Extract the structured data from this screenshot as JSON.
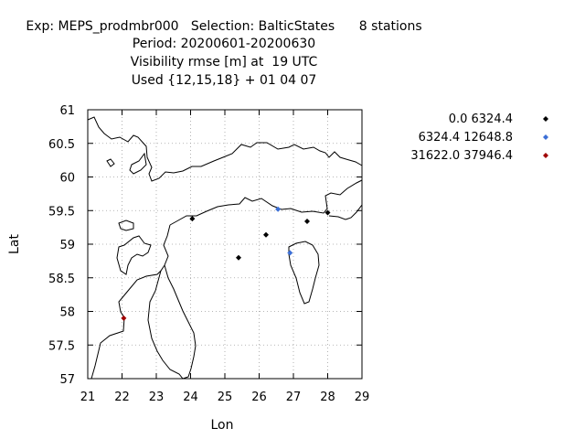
{
  "title": {
    "line1": "Exp: MEPS_prodmbr000   Selection: BalticStates      8 stations",
    "line2": "Period: 20200601-20200630",
    "line3": "Visibility rmse [m] at  19 UTC",
    "line4": "Used {12,15,18} + 01 04 07"
  },
  "chart_data": {
    "type": "scatter",
    "xlabel": "Lon",
    "ylabel": "Lat",
    "xlim": [
      21,
      29
    ],
    "ylim": [
      57,
      61
    ],
    "x_ticks": [
      "21",
      "22",
      "23",
      "24",
      "25",
      "26",
      "27",
      "28",
      "29"
    ],
    "y_ticks": [
      "57",
      "57.5",
      "58",
      "58.5",
      "59",
      "59.5",
      "60",
      "60.5",
      "61"
    ],
    "grid": true,
    "legend_position": "right",
    "series": [
      {
        "name": "0.0 6324.4",
        "color": "#000000",
        "points": [
          [
            24.05,
            59.38
          ],
          [
            25.4,
            58.8
          ],
          [
            26.2,
            59.14
          ],
          [
            27.4,
            59.34
          ],
          [
            28.0,
            59.47
          ]
        ]
      },
      {
        "name": "6324.4 12648.8",
        "color": "#3c6fd6",
        "points": [
          [
            26.55,
            59.52
          ],
          [
            26.9,
            58.87
          ]
        ]
      },
      {
        "name": "31622.0 37946.4",
        "color": "#a00000",
        "points": [
          [
            22.05,
            57.9
          ]
        ]
      }
    ]
  }
}
